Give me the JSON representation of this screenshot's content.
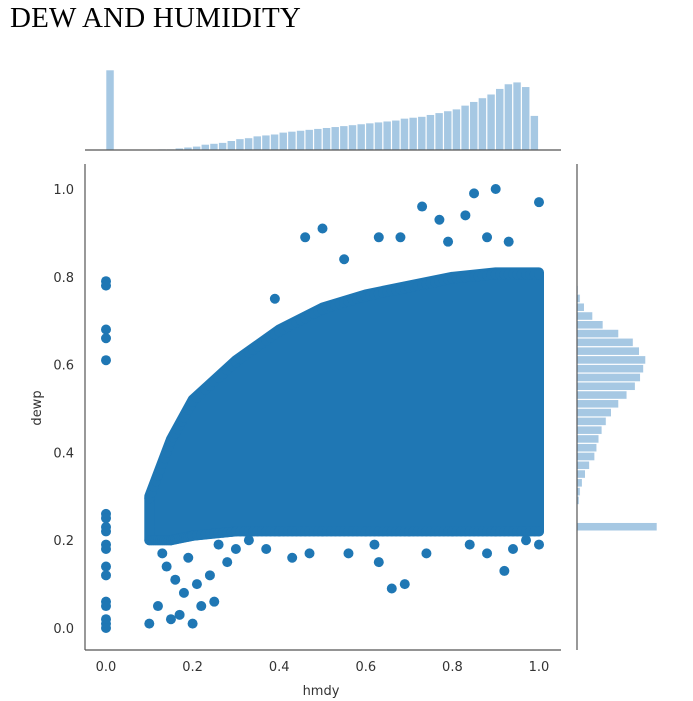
{
  "title": "DEW AND HUMIDITY",
  "colors": {
    "point": "#1f77b4",
    "hist": "#a6c8e3",
    "axis": "#555555"
  },
  "chart_data": {
    "type": "scatter",
    "subtype": "jointplot",
    "title": "DEW AND HUMIDITY",
    "xlabel": "hmdy",
    "ylabel": "dewp",
    "xlim": [
      -0.05,
      1.05
    ],
    "ylim": [
      -0.05,
      1.05
    ],
    "xticks": [
      "0.0",
      "0.2",
      "0.4",
      "0.6",
      "0.8",
      "1.0"
    ],
    "yticks": [
      "0.0",
      "0.2",
      "0.4",
      "0.6",
      "0.8",
      "1.0"
    ],
    "grid": false,
    "dense_region_note": "solid mass of points for hmdy 0.1–1.0, dewp from ~0.22 up to an upper envelope rising from ~0.30 at hmdy 0.1 to ~0.80 at hmdy 1.0",
    "density_envelope": [
      {
        "x": 0.1,
        "lower": 0.2,
        "upper": 0.3
      },
      {
        "x": 0.15,
        "lower": 0.2,
        "upper": 0.43
      },
      {
        "x": 0.2,
        "lower": 0.21,
        "upper": 0.52
      },
      {
        "x": 0.3,
        "lower": 0.22,
        "upper": 0.61
      },
      {
        "x": 0.4,
        "lower": 0.22,
        "upper": 0.68
      },
      {
        "x": 0.5,
        "lower": 0.22,
        "upper": 0.73
      },
      {
        "x": 0.6,
        "lower": 0.22,
        "upper": 0.76
      },
      {
        "x": 0.7,
        "lower": 0.22,
        "upper": 0.78
      },
      {
        "x": 0.8,
        "lower": 0.22,
        "upper": 0.8
      },
      {
        "x": 0.9,
        "lower": 0.22,
        "upper": 0.81
      },
      {
        "x": 1.0,
        "lower": 0.22,
        "upper": 0.81
      }
    ],
    "points": [
      {
        "x": 0.0,
        "y": 0.79
      },
      {
        "x": 0.0,
        "y": 0.78
      },
      {
        "x": 0.0,
        "y": 0.68
      },
      {
        "x": 0.0,
        "y": 0.66
      },
      {
        "x": 0.0,
        "y": 0.61
      },
      {
        "x": 0.0,
        "y": 0.26
      },
      {
        "x": 0.0,
        "y": 0.25
      },
      {
        "x": 0.0,
        "y": 0.23
      },
      {
        "x": 0.0,
        "y": 0.22
      },
      {
        "x": 0.0,
        "y": 0.19
      },
      {
        "x": 0.0,
        "y": 0.18
      },
      {
        "x": 0.0,
        "y": 0.14
      },
      {
        "x": 0.0,
        "y": 0.12
      },
      {
        "x": 0.0,
        "y": 0.06
      },
      {
        "x": 0.0,
        "y": 0.05
      },
      {
        "x": 0.0,
        "y": 0.02
      },
      {
        "x": 0.0,
        "y": 0.01
      },
      {
        "x": 0.0,
        "y": 0.0
      },
      {
        "x": 0.46,
        "y": 0.89
      },
      {
        "x": 0.5,
        "y": 0.91
      },
      {
        "x": 0.63,
        "y": 0.89
      },
      {
        "x": 0.68,
        "y": 0.89
      },
      {
        "x": 0.73,
        "y": 0.96
      },
      {
        "x": 0.77,
        "y": 0.93
      },
      {
        "x": 0.83,
        "y": 0.94
      },
      {
        "x": 0.85,
        "y": 0.99
      },
      {
        "x": 0.9,
        "y": 1.0
      },
      {
        "x": 1.0,
        "y": 0.97
      },
      {
        "x": 0.88,
        "y": 0.89
      },
      {
        "x": 0.93,
        "y": 0.88
      },
      {
        "x": 0.39,
        "y": 0.75
      },
      {
        "x": 0.55,
        "y": 0.84
      },
      {
        "x": 0.79,
        "y": 0.88
      },
      {
        "x": 0.1,
        "y": 0.01
      },
      {
        "x": 0.15,
        "y": 0.02
      },
      {
        "x": 0.17,
        "y": 0.03
      },
      {
        "x": 0.2,
        "y": 0.01
      },
      {
        "x": 0.22,
        "y": 0.05
      },
      {
        "x": 0.25,
        "y": 0.06
      },
      {
        "x": 0.12,
        "y": 0.05
      },
      {
        "x": 0.18,
        "y": 0.08
      },
      {
        "x": 0.16,
        "y": 0.11
      },
      {
        "x": 0.21,
        "y": 0.1
      },
      {
        "x": 0.24,
        "y": 0.12
      },
      {
        "x": 0.28,
        "y": 0.15
      },
      {
        "x": 0.14,
        "y": 0.14
      },
      {
        "x": 0.3,
        "y": 0.18
      },
      {
        "x": 0.33,
        "y": 0.2
      },
      {
        "x": 0.13,
        "y": 0.17
      },
      {
        "x": 0.19,
        "y": 0.16
      },
      {
        "x": 0.26,
        "y": 0.19
      },
      {
        "x": 0.43,
        "y": 0.16
      },
      {
        "x": 0.47,
        "y": 0.17
      },
      {
        "x": 0.63,
        "y": 0.15
      },
      {
        "x": 0.66,
        "y": 0.09
      },
      {
        "x": 0.69,
        "y": 0.1
      },
      {
        "x": 0.62,
        "y": 0.19
      },
      {
        "x": 0.84,
        "y": 0.19
      },
      {
        "x": 0.92,
        "y": 0.13
      },
      {
        "x": 0.94,
        "y": 0.18
      },
      {
        "x": 0.97,
        "y": 0.2
      },
      {
        "x": 1.0,
        "y": 0.19
      },
      {
        "x": 0.56,
        "y": 0.17
      },
      {
        "x": 0.37,
        "y": 0.18
      },
      {
        "x": 0.74,
        "y": 0.17
      },
      {
        "x": 0.88,
        "y": 0.17
      }
    ],
    "marginal_x": {
      "bin_start": 0.0,
      "bin_width": 0.02,
      "counts": [
        86,
        0,
        0,
        0,
        0,
        0,
        1,
        1,
        2,
        3,
        4,
        6,
        7,
        8,
        10,
        12,
        13,
        15,
        16,
        17,
        19,
        20,
        21,
        22,
        23,
        24,
        25,
        26,
        27,
        28,
        29,
        30,
        31,
        32,
        34,
        35,
        36,
        38,
        40,
        42,
        44,
        48,
        52,
        56,
        60,
        66,
        71,
        73,
        68,
        37
      ]
    },
    "marginal_y": {
      "bin_start": 0.0,
      "bin_width": 0.02,
      "counts": [
        0,
        0,
        0,
        0,
        0,
        0,
        0,
        0,
        0,
        0,
        0,
        77,
        0,
        0,
        2,
        3,
        5,
        8,
        12,
        17,
        19,
        21,
        24,
        28,
        33,
        40,
        48,
        56,
        61,
        64,
        66,
        60,
        54,
        40,
        25,
        15,
        7,
        3,
        1,
        0
      ]
    }
  }
}
